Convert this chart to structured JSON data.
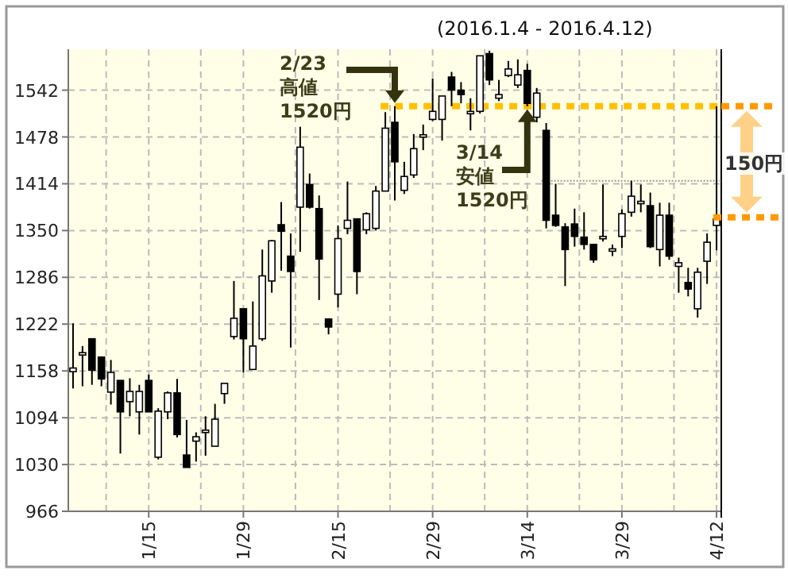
{
  "chart_data": {
    "type": "candlestick",
    "subtitle": "(2016.1.4 - 2016.4.12)",
    "categories": [
      null,
      null,
      null,
      null,
      null,
      null,
      null,
      null,
      "1/15",
      null,
      null,
      null,
      null,
      null,
      null,
      null,
      null,
      null,
      "1/29",
      null,
      null,
      null,
      null,
      null,
      null,
      null,
      null,
      null,
      "2/15",
      null,
      null,
      null,
      null,
      null,
      null,
      null,
      null,
      null,
      "2/29",
      null,
      null,
      null,
      null,
      null,
      null,
      null,
      null,
      null,
      "3/14",
      null,
      null,
      null,
      null,
      null,
      null,
      null,
      null,
      null,
      "3/29",
      null,
      null,
      null,
      null,
      null,
      null,
      null,
      null,
      null,
      "4/12"
    ],
    "ohlc": [
      [
        1157,
        1223,
        1134,
        1162
      ],
      [
        1182,
        1192,
        1137,
        1183
      ],
      [
        1202,
        1202,
        1139,
        1159
      ],
      [
        1177,
        1177,
        1137,
        1147
      ],
      [
        1129,
        1173,
        1112,
        1156
      ],
      [
        1145,
        1145,
        1045,
        1102
      ],
      [
        1116,
        1148,
        1096,
        1130
      ],
      [
        1102,
        1139,
        1071,
        1130
      ],
      [
        1145,
        1153,
        1102,
        1102
      ],
      [
        1040,
        1107,
        1037,
        1103
      ],
      [
        1102,
        1130,
        1092,
        1128
      ],
      [
        1128,
        1147,
        1067,
        1071
      ],
      [
        1043,
        1091,
        1026,
        1026
      ],
      [
        1062,
        1074,
        1034,
        1068
      ],
      [
        1075,
        1096,
        1042,
        1077
      ],
      [
        1055,
        1113,
        1055,
        1092
      ],
      [
        1127,
        1141,
        1113,
        1141
      ],
      [
        1205,
        1281,
        1201,
        1230
      ],
      [
        1243,
        1243,
        1156,
        1202
      ],
      [
        1160,
        1253,
        1160,
        1192
      ],
      [
        1202,
        1324,
        1199,
        1288
      ],
      [
        1281,
        1337,
        1265,
        1336
      ],
      [
        1358,
        1389,
        1295,
        1349
      ],
      [
        1315,
        1346,
        1190,
        1294
      ],
      [
        1382,
        1492,
        1321,
        1464
      ],
      [
        1413,
        1428,
        1380,
        1382
      ],
      [
        1380,
        1398,
        1255,
        1311
      ],
      [
        1229,
        1230,
        1208,
        1218
      ],
      [
        1263,
        1357,
        1245,
        1339
      ],
      [
        1353,
        1417,
        1345,
        1364
      ],
      [
        1366,
        1366,
        1263,
        1294
      ],
      [
        1351,
        1375,
        1345,
        1373
      ],
      [
        1353,
        1411,
        1350,
        1404
      ],
      [
        1404,
        1512,
        1404,
        1490
      ],
      [
        1498,
        1520,
        1391,
        1444
      ],
      [
        1405,
        1444,
        1400,
        1424
      ],
      [
        1426,
        1482,
        1422,
        1462
      ],
      [
        1480,
        1495,
        1460,
        1481
      ],
      [
        1502,
        1558,
        1500,
        1513
      ],
      [
        1502,
        1534,
        1473,
        1534
      ],
      [
        1560,
        1567,
        1520,
        1542
      ],
      [
        1542,
        1553,
        1524,
        1536
      ],
      [
        1512,
        1531,
        1487,
        1513
      ],
      [
        1513,
        1589,
        1510,
        1589
      ],
      [
        1592,
        1596,
        1549,
        1556
      ],
      [
        1531,
        1556,
        1527,
        1536
      ],
      [
        1562,
        1582,
        1560,
        1571
      ],
      [
        1549,
        1584,
        1545,
        1563
      ],
      [
        1569,
        1578,
        1520,
        1524
      ],
      [
        1505,
        1545,
        1498,
        1538
      ],
      [
        1487,
        1497,
        1353,
        1364
      ],
      [
        1371,
        1414,
        1355,
        1357
      ],
      [
        1355,
        1360,
        1274,
        1324
      ],
      [
        1359,
        1380,
        1328,
        1342
      ],
      [
        1341,
        1375,
        1324,
        1331
      ],
      [
        1331,
        1331,
        1306,
        1310
      ],
      [
        1340,
        1413,
        1335,
        1342
      ],
      [
        1323,
        1331,
        1315,
        1325
      ],
      [
        1342,
        1379,
        1326,
        1373
      ],
      [
        1375,
        1418,
        1369,
        1397
      ],
      [
        1389,
        1413,
        1375,
        1390
      ],
      [
        1384,
        1402,
        1326,
        1328
      ],
      [
        1324,
        1388,
        1301,
        1371
      ],
      [
        1371,
        1388,
        1310,
        1315
      ],
      [
        1301,
        1313,
        1265,
        1306
      ],
      [
        1279,
        1299,
        1260,
        1270
      ],
      [
        1243,
        1299,
        1231,
        1293
      ],
      [
        1308,
        1346,
        1277,
        1334
      ],
      [
        1357,
        1520,
        1323,
        1366
      ]
    ],
    "ylim": [
      966,
      1598
    ],
    "yticks": [
      966,
      1030,
      1094,
      1158,
      1222,
      1286,
      1350,
      1414,
      1478,
      1542
    ],
    "grid": true,
    "ref_lines": [
      {
        "axis": "y",
        "value": 1520,
        "color": "#ffc000",
        "line_style": "dotted"
      },
      {
        "axis": "y",
        "value": 1418,
        "color": "#999999",
        "line_style": "dotted"
      }
    ],
    "annotations": [
      "2/23\n高値\n1520円",
      "3/14\n安値\n1520円",
      "150円"
    ]
  }
}
